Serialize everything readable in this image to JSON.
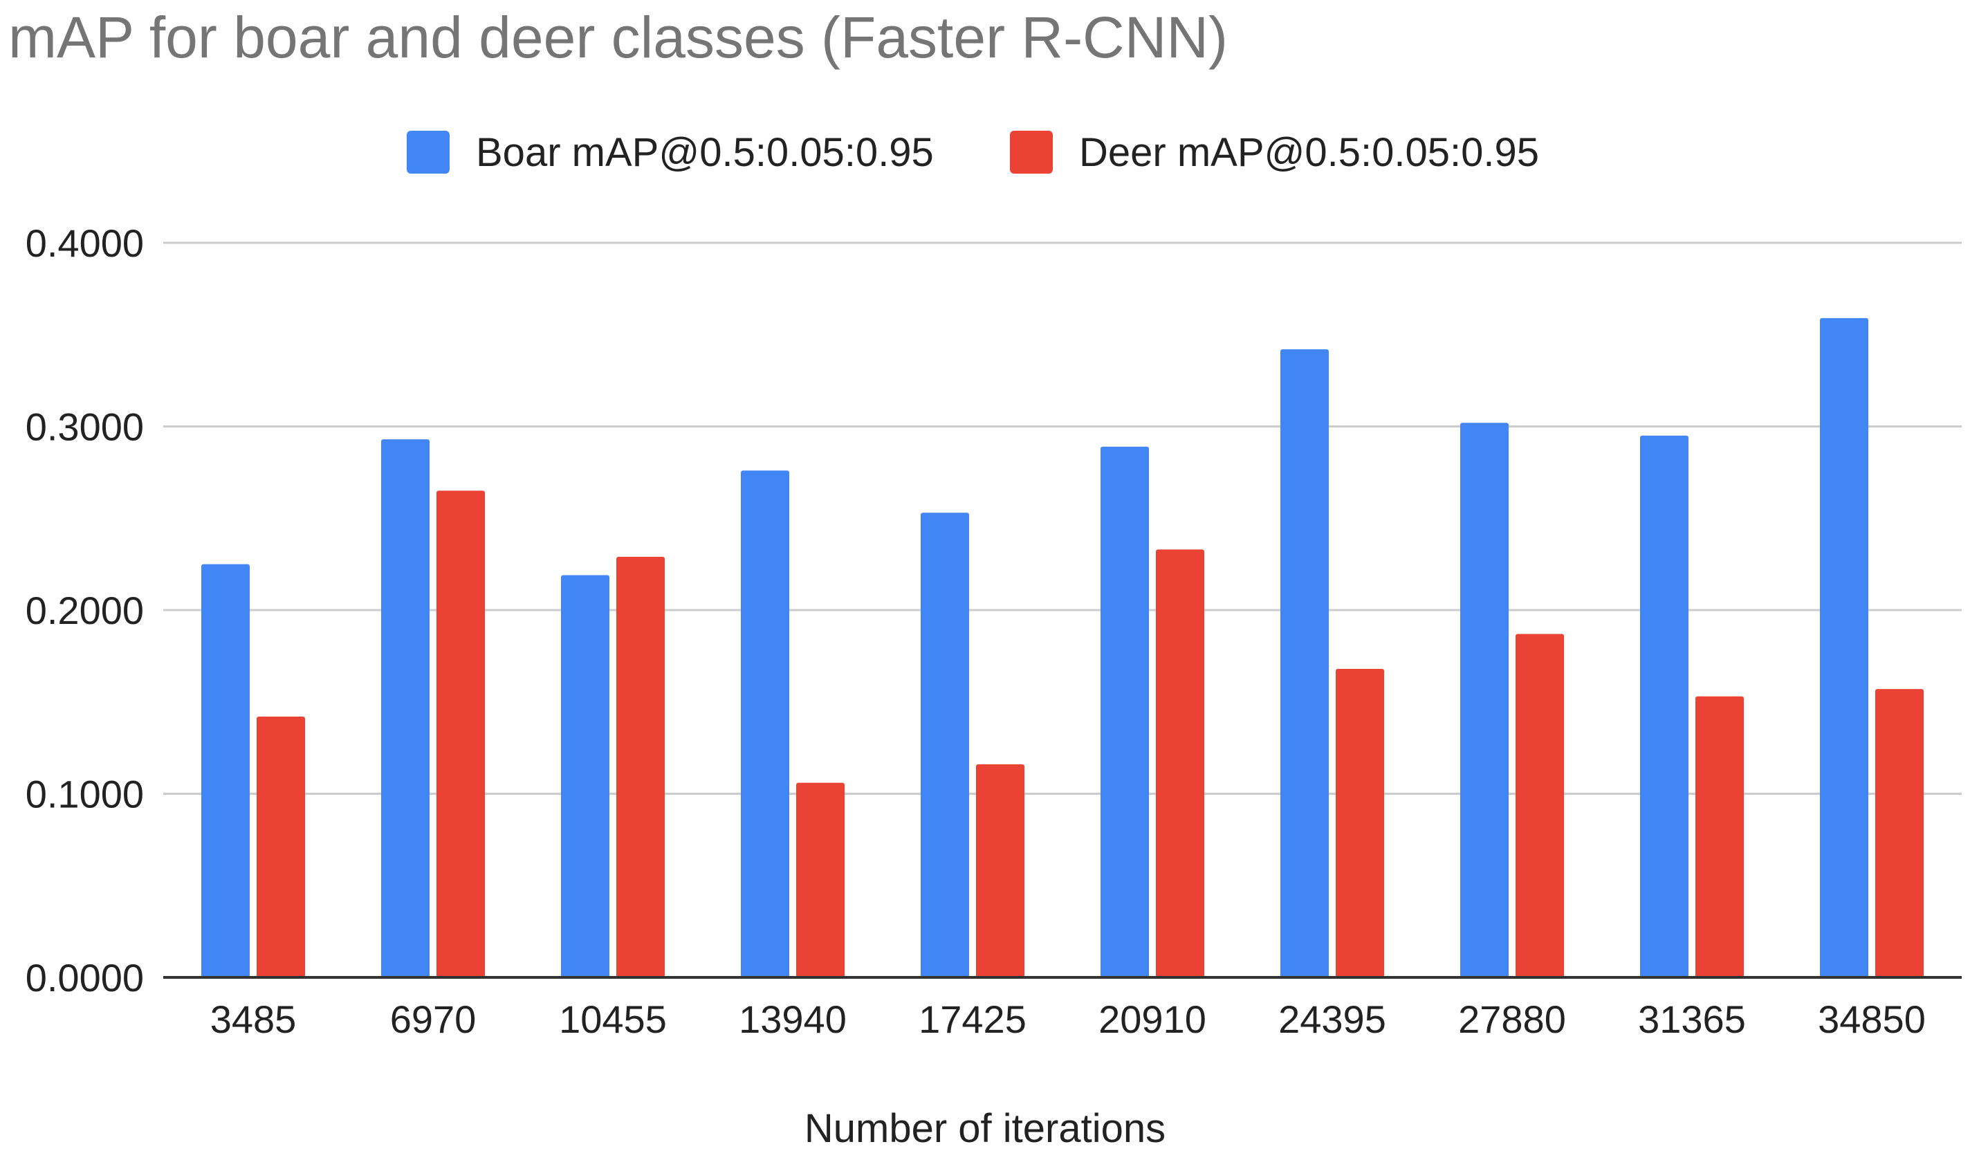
{
  "chart_data": {
    "type": "bar",
    "title": "mAP for boar and deer classes (Faster R-CNN)",
    "xlabel": "Number of iterations",
    "ylabel": "",
    "categories": [
      "3485",
      "6970",
      "10455",
      "13940",
      "17425",
      "20910",
      "24395",
      "27880",
      "31365",
      "34850"
    ],
    "series": [
      {
        "name": "Boar mAP@0.5:0.05:0.95",
        "color": "#4285f4",
        "values": [
          0.225,
          0.293,
          0.219,
          0.276,
          0.253,
          0.289,
          0.342,
          0.302,
          0.295,
          0.359
        ]
      },
      {
        "name": "Deer mAP@0.5:0.05:0.95",
        "color": "#ea4335",
        "values": [
          0.142,
          0.265,
          0.229,
          0.106,
          0.116,
          0.233,
          0.168,
          0.187,
          0.153,
          0.157
        ]
      }
    ],
    "ylim": [
      0,
      0.4
    ],
    "yticks": [
      "0.0000",
      "0.1000",
      "0.2000",
      "0.3000",
      "0.4000"
    ],
    "grid": true,
    "legend_position": "top"
  }
}
